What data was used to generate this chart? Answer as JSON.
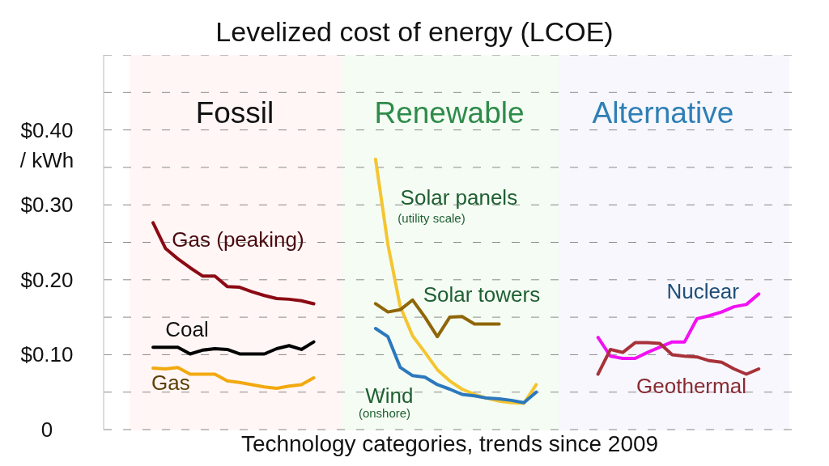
{
  "chart_data": {
    "type": "line",
    "title": "Levelized cost of energy (LCOE)",
    "xlabel": "Technology categories, trends since 2009",
    "annotations": [
      "Fossil",
      "Renewable",
      "Alternative",
      "(utility scale)",
      "(onshore)"
    ],
    "categories": [
      null,
      null,
      null,
      null,
      null,
      null,
      null,
      null,
      null,
      null,
      null,
      null,
      null,
      null,
      null,
      null,
      null,
      null,
      null,
      null,
      null,
      null,
      null,
      null,
      null,
      null,
      null,
      null,
      null,
      null,
      null,
      null,
      null,
      null,
      null,
      null,
      null,
      null,
      null,
      null,
      null,
      null,
      null,
      null,
      null,
      null,
      null,
      null,
      null,
      null,
      null,
      null,
      null,
      null,
      null,
      null,
      null
    ],
    "series": [
      {
        "name": "Gas (peaking)",
        "color": "#8b0a14",
        "values": [
          null,
          null,
          null,
          null,
          0.276,
          0.242,
          0.228,
          0.216,
          0.205,
          0.205,
          0.191,
          0.19,
          0.184,
          0.179,
          0.175,
          0.174,
          0.172,
          0.168,
          null,
          null,
          null,
          null,
          null,
          null,
          null,
          null,
          null,
          null,
          null,
          null,
          null,
          null,
          null,
          null,
          null,
          null,
          null,
          null,
          null,
          null,
          null,
          null,
          null,
          null,
          null,
          null,
          null,
          null,
          null,
          null,
          null,
          null,
          null,
          null,
          null,
          null,
          null
        ]
      },
      {
        "name": "Coal",
        "color": "#000000",
        "values": [
          null,
          null,
          null,
          null,
          0.11,
          0.11,
          0.11,
          0.101,
          0.106,
          0.108,
          0.107,
          0.101,
          0.101,
          0.101,
          0.108,
          0.112,
          0.107,
          0.117,
          null,
          null,
          null,
          null,
          null,
          null,
          null,
          null,
          null,
          null,
          null,
          null,
          null,
          null,
          null,
          null,
          null,
          null,
          null,
          null,
          null,
          null,
          null,
          null,
          null,
          null,
          null,
          null,
          null,
          null,
          null,
          null,
          null,
          null,
          null,
          null,
          null,
          null,
          null
        ]
      },
      {
        "name": "Gas",
        "color": "#f2a90f",
        "values": [
          null,
          null,
          null,
          null,
          0.082,
          0.081,
          0.083,
          0.074,
          0.074,
          0.074,
          0.065,
          0.063,
          0.06,
          0.057,
          0.055,
          0.058,
          0.06,
          0.069,
          null,
          null,
          null,
          null,
          null,
          null,
          null,
          null,
          null,
          null,
          null,
          null,
          null,
          null,
          null,
          null,
          null,
          null,
          null,
          null,
          null,
          null,
          null,
          null,
          null,
          null,
          null,
          null,
          null,
          null,
          null,
          null,
          null,
          null,
          null,
          null,
          null,
          null,
          null
        ]
      },
      {
        "name": "Solar panels",
        "color": "#f5c531",
        "values": [
          null,
          null,
          null,
          null,
          null,
          null,
          null,
          null,
          null,
          null,
          null,
          null,
          null,
          null,
          null,
          null,
          null,
          null,
          null,
          null,
          null,
          null,
          0.361,
          0.247,
          0.164,
          0.125,
          0.103,
          0.08,
          0.065,
          0.054,
          0.047,
          0.042,
          0.038,
          0.036,
          0.035,
          0.06,
          null,
          null,
          null,
          null,
          null,
          null,
          null,
          null,
          null,
          null,
          null,
          null,
          null,
          null,
          null,
          null,
          null,
          null,
          null,
          null,
          null
        ]
      },
      {
        "name": "Solar towers",
        "color": "#8f6608",
        "values": [
          null,
          null,
          null,
          null,
          null,
          null,
          null,
          null,
          null,
          null,
          null,
          null,
          null,
          null,
          null,
          null,
          null,
          null,
          null,
          null,
          null,
          null,
          0.168,
          0.157,
          0.16,
          0.173,
          0.15,
          0.124,
          0.15,
          0.151,
          0.141,
          0.141,
          0.141,
          null,
          null,
          null,
          null,
          null,
          null,
          null,
          null,
          null,
          null,
          null,
          null,
          null,
          null,
          null,
          null,
          null,
          null,
          null,
          null,
          null,
          null,
          null,
          null
        ]
      },
      {
        "name": "Wind",
        "color": "#2b78be",
        "values": [
          null,
          null,
          null,
          null,
          null,
          null,
          null,
          null,
          null,
          null,
          null,
          null,
          null,
          null,
          null,
          null,
          null,
          null,
          null,
          null,
          null,
          null,
          0.135,
          0.124,
          0.083,
          0.072,
          0.07,
          0.06,
          0.054,
          0.047,
          0.045,
          0.042,
          0.041,
          0.039,
          0.036,
          0.05,
          null,
          null,
          null,
          null,
          null,
          null,
          null,
          null,
          null,
          null,
          null,
          null,
          null,
          null,
          null,
          null,
          null,
          null,
          null,
          null,
          null
        ]
      },
      {
        "name": "Nuclear",
        "color": "#f211f2",
        "values": [
          null,
          null,
          null,
          null,
          null,
          null,
          null,
          null,
          null,
          null,
          null,
          null,
          null,
          null,
          null,
          null,
          null,
          null,
          null,
          null,
          null,
          null,
          null,
          null,
          null,
          null,
          null,
          null,
          null,
          null,
          null,
          null,
          null,
          null,
          null,
          null,
          null,
          null,
          null,
          null,
          0.123,
          0.098,
          0.095,
          0.095,
          0.103,
          0.11,
          0.117,
          0.117,
          0.148,
          0.152,
          0.157,
          0.164,
          0.167,
          0.181,
          null,
          null,
          null
        ]
      },
      {
        "name": "Geothermal",
        "color": "#a8323a",
        "values": [
          null,
          null,
          null,
          null,
          null,
          null,
          null,
          null,
          null,
          null,
          null,
          null,
          null,
          null,
          null,
          null,
          null,
          null,
          null,
          null,
          null,
          null,
          null,
          null,
          null,
          null,
          null,
          null,
          null,
          null,
          null,
          null,
          null,
          null,
          null,
          null,
          null,
          null,
          null,
          null,
          0.074,
          0.107,
          0.103,
          0.116,
          0.116,
          0.115,
          0.1,
          0.098,
          0.097,
          0.092,
          0.09,
          0.081,
          0.074,
          0.081,
          null,
          null,
          null
        ]
      }
    ],
    "ylim": [
      0,
      0.5
    ],
    "yticks": [
      {
        "value": 0,
        "label": "0"
      },
      {
        "value": 0.05,
        "label": null
      },
      {
        "value": 0.1,
        "label": "$0.10"
      },
      {
        "value": 0.15,
        "label": null
      },
      {
        "value": 0.2,
        "label": "$0.20"
      },
      {
        "value": 0.25,
        "label": null
      },
      {
        "value": 0.3,
        "label": "$0.30"
      },
      {
        "value": 0.35,
        "label": null
      },
      {
        "value": 0.4,
        "label": "$0.40\n/ kWh"
      },
      {
        "value": 0.45,
        "label": null
      }
    ],
    "grid": "y",
    "tick_labels": "y"
  }
}
